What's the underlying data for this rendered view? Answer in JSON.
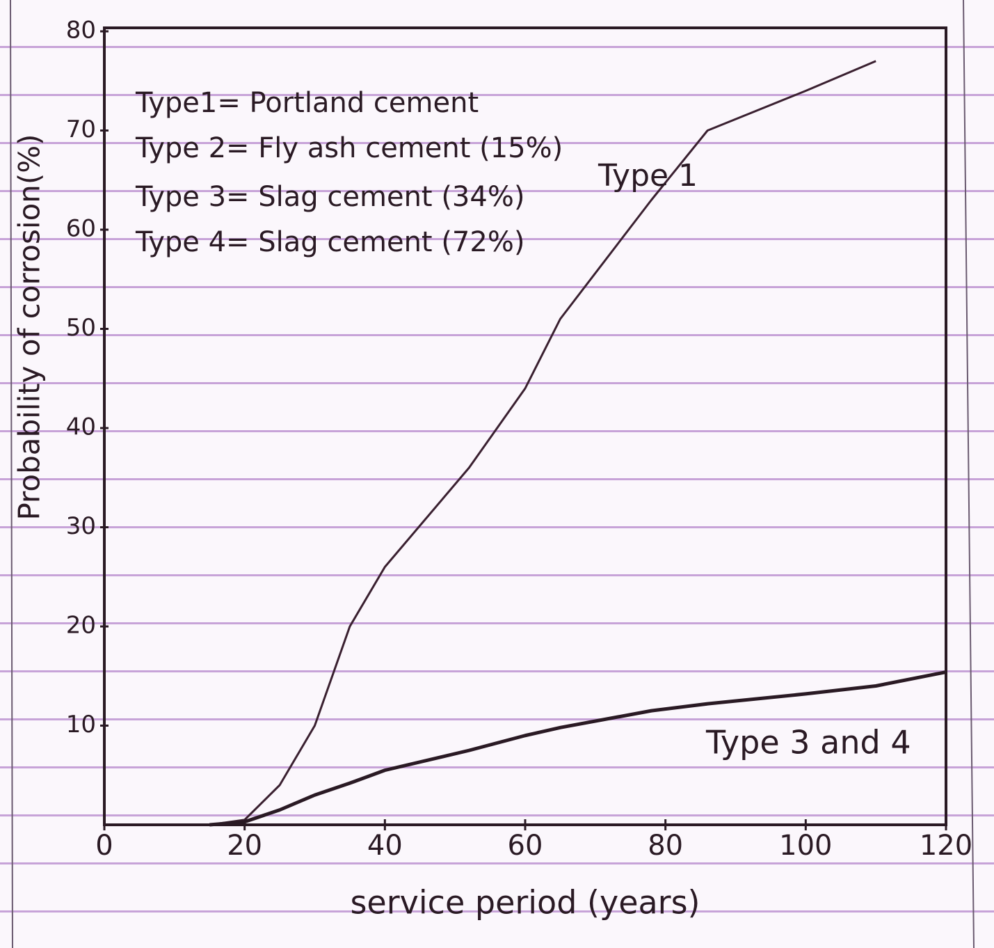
{
  "chart_data": {
    "type": "line",
    "x_label": "service period (years)",
    "y_label": "Probability of corrosion(%)",
    "key": [
      "Type1= Portland cement",
      "Type 2= Fly ash cement (15%)",
      "Type 3= Slag cement (34%)",
      "Type 4= Slag cement (72%)"
    ],
    "x": [
      15,
      20,
      25,
      30,
      35,
      40,
      52,
      60,
      65,
      78,
      86,
      100,
      110,
      120
    ],
    "series": [
      {
        "name": "Type 1",
        "color": "#3a2030",
        "values": [
          0,
          0.5,
          4,
          10,
          20,
          26,
          36,
          44,
          51,
          63,
          70,
          74,
          77,
          null
        ]
      },
      {
        "name": "Type 3 and 4",
        "color": "#2a1a24",
        "values": [
          0,
          0.3,
          1.5,
          3,
          4.2,
          5.5,
          7.5,
          9,
          9.8,
          11.5,
          12.2,
          13.2,
          14,
          15.4
        ]
      }
    ],
    "xlim": [
      0,
      120
    ],
    "xticks": [
      0,
      20,
      40,
      60,
      80,
      100,
      120
    ],
    "ylim": [
      0,
      80
    ],
    "yticks": [
      10,
      20,
      30,
      40,
      50,
      60,
      70,
      80
    ]
  }
}
